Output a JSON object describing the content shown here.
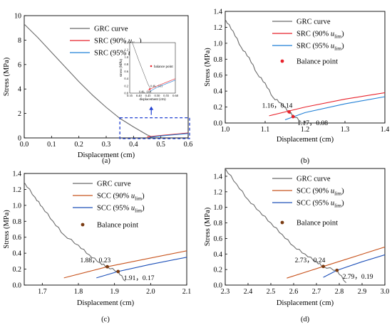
{
  "chart_data": [
    {
      "type": "line",
      "caption": "(a)",
      "xlabel": "Displacement (cm)",
      "ylabel": "Stress (MPa)",
      "xlim": [
        0.0,
        0.6
      ],
      "ylim": [
        0,
        10
      ],
      "xticks": [
        "0.0",
        "0.1",
        "0.2",
        "0.3",
        "0.4",
        "0.5",
        "0.6"
      ],
      "yticks": [
        "0",
        "2",
        "4",
        "6",
        "8",
        "10"
      ],
      "legend_position": "top-right",
      "series": [
        {
          "name": "GRC curve",
          "color": "#6b6b6b",
          "x": [
            0.0,
            0.05,
            0.1,
            0.15,
            0.2,
            0.25,
            0.3,
            0.35,
            0.4,
            0.45,
            0.465
          ],
          "y": [
            9.3,
            8.2,
            7.0,
            5.8,
            4.6,
            3.5,
            2.5,
            1.6,
            0.9,
            0.25,
            0.11
          ]
        },
        {
          "name": "SRC (90%  u",
          "sub": "lim",
          "tail": ")",
          "color": "#e8222b",
          "x": [
            0.45,
            0.5,
            0.55,
            0.6
          ],
          "y": [
            0.08,
            0.2,
            0.3,
            0.4
          ]
        },
        {
          "name": "SRC (95%  u",
          "sub": "lim",
          "tail": ")",
          "color": "#1f7fd6",
          "x": [
            0.46,
            0.5,
            0.55,
            0.6
          ],
          "y": [
            0.05,
            0.16,
            0.26,
            0.36
          ]
        }
      ],
      "inset": {
        "xlim": [
          0.35,
          0.6
        ],
        "ylim": [
          0,
          1.4
        ],
        "xticks": [
          "0.35",
          "0.40",
          "0.45",
          "0.50",
          "0.55",
          "0.60"
        ],
        "yticks": [
          "0.0",
          "0.2",
          "0.4",
          "0.6",
          "0.8",
          "1.0",
          "1.2",
          "1.4"
        ],
        "xlabel": "displacement (cm)",
        "ylabel": "stress (MPa)",
        "legend": "balance point",
        "labels": [
          "0.46，0.11",
          "0.46，0.08"
        ]
      }
    },
    {
      "type": "line",
      "caption": "(b)",
      "xlabel": "Displacement (cm)",
      "ylabel": "Stress (MPa)",
      "xlim": [
        1.0,
        1.4
      ],
      "ylim": [
        0,
        1.4
      ],
      "xticks": [
        "1.0",
        "1.1",
        "1.2",
        "1.3",
        "1.4"
      ],
      "yticks": [
        "0.0",
        "0.2",
        "0.4",
        "0.6",
        "0.8",
        "1.0",
        "1.2",
        "1.4"
      ],
      "legend_position": "top-right",
      "balance_legend": "Balance point",
      "series": [
        {
          "name": "GRC curve",
          "color": "#6b6b6b",
          "x": [
            1.0,
            1.02,
            1.04,
            1.06,
            1.08,
            1.1,
            1.12,
            1.14,
            1.16,
            1.17,
            1.19
          ],
          "y": [
            1.3,
            1.15,
            0.95,
            0.82,
            0.62,
            0.5,
            0.32,
            0.25,
            0.14,
            0.1,
            0.02
          ]
        },
        {
          "name": "SRC (90%  u",
          "sub": "lim",
          "tail": ")",
          "color": "#e8222b",
          "x": [
            1.11,
            1.2,
            1.3,
            1.4
          ],
          "y": [
            0.09,
            0.2,
            0.3,
            0.38
          ]
        },
        {
          "name": "SRC (95%  u",
          "sub": "lim",
          "tail": ")",
          "color": "#1f7fd6",
          "x": [
            1.15,
            1.2,
            1.3,
            1.4
          ],
          "y": [
            0.04,
            0.13,
            0.24,
            0.33
          ]
        }
      ],
      "points": [
        {
          "x": 1.16,
          "y": 0.14,
          "label": "1.16，0.14",
          "color": "#e8222b"
        },
        {
          "x": 1.17,
          "y": 0.08,
          "label": "1.17，0.08",
          "color": "#e8222b"
        }
      ]
    },
    {
      "type": "line",
      "caption": "(c)",
      "xlabel": "Displacement (cm)",
      "ylabel": "Stress (MPa)",
      "xlim": [
        1.65,
        2.1
      ],
      "ylim": [
        0,
        1.4
      ],
      "xticks": [
        "1.7",
        "1.8",
        "1.9",
        "2.0",
        "2.1"
      ],
      "yticks": [
        "0.0",
        "0.2",
        "0.4",
        "0.6",
        "0.8",
        "1.0",
        "1.2",
        "1.4"
      ],
      "legend_position": "top-right",
      "balance_legend": "Balance point",
      "series": [
        {
          "name": "GRC curve",
          "color": "#6b6b6b",
          "x": [
            1.65,
            1.68,
            1.7,
            1.73,
            1.76,
            1.8,
            1.83,
            1.86,
            1.88,
            1.91,
            1.93
          ],
          "y": [
            1.29,
            1.1,
            0.98,
            0.8,
            0.63,
            0.5,
            0.38,
            0.28,
            0.23,
            0.17,
            0.05
          ]
        },
        {
          "name": "SCC (90%  u",
          "sub": "lim",
          "tail": ")",
          "color": "#c8541e",
          "x": [
            1.76,
            1.88,
            2.0,
            2.1
          ],
          "y": [
            0.09,
            0.23,
            0.34,
            0.43
          ]
        },
        {
          "name": "SCC (95%  u",
          "sub": "lim",
          "tail": ")",
          "color": "#1c4fb8",
          "x": [
            1.85,
            1.91,
            2.0,
            2.1
          ],
          "y": [
            0.09,
            0.17,
            0.26,
            0.35
          ]
        }
      ],
      "points": [
        {
          "x": 1.88,
          "y": 0.23,
          "label": "1.88，0.23",
          "color": "#7a3b12"
        },
        {
          "x": 1.91,
          "y": 0.17,
          "label": "1.91，0.17",
          "color": "#7a3b12"
        }
      ]
    },
    {
      "type": "line",
      "caption": "(d)",
      "xlabel": "Displacement (cm)",
      "ylabel": "Stress (MPa)",
      "xlim": [
        2.3,
        3.0
      ],
      "ylim": [
        0,
        1.5
      ],
      "xticks": [
        "2.3",
        "2.4",
        "2.5",
        "2.6",
        "2.7",
        "2.8",
        "2.9",
        "3.0"
      ],
      "yticks": [
        "0.0",
        "0.2",
        "0.4",
        "0.6",
        "0.8",
        "1.0",
        "1.2",
        "1.4"
      ],
      "legend_position": "top-right",
      "balance_legend": "Balance point",
      "series": [
        {
          "name": "GRC curve",
          "color": "#6b6b6b",
          "x": [
            2.3,
            2.35,
            2.4,
            2.45,
            2.5,
            2.55,
            2.6,
            2.65,
            2.7,
            2.73,
            2.79,
            2.83
          ],
          "y": [
            1.5,
            1.3,
            1.1,
            0.95,
            0.8,
            0.65,
            0.5,
            0.4,
            0.3,
            0.24,
            0.19,
            0.03
          ]
        },
        {
          "name": "SCC (90%  u",
          "sub": "lim",
          "tail": ")",
          "color": "#c8541e",
          "x": [
            2.57,
            2.73,
            2.85,
            3.0
          ],
          "y": [
            0.09,
            0.24,
            0.35,
            0.49
          ]
        },
        {
          "name": "SCC (95%  u",
          "sub": "lim",
          "tail": ")",
          "color": "#1c4fb8",
          "x": [
            2.73,
            2.79,
            2.9,
            3.0
          ],
          "y": [
            0.1,
            0.19,
            0.3,
            0.39
          ]
        }
      ],
      "points": [
        {
          "x": 2.73,
          "y": 0.24,
          "label": "2.73，0.24",
          "color": "#7a3b12"
        },
        {
          "x": 2.79,
          "y": 0.19,
          "label": "2.79，0.19",
          "color": "#7a3b12"
        }
      ]
    }
  ]
}
